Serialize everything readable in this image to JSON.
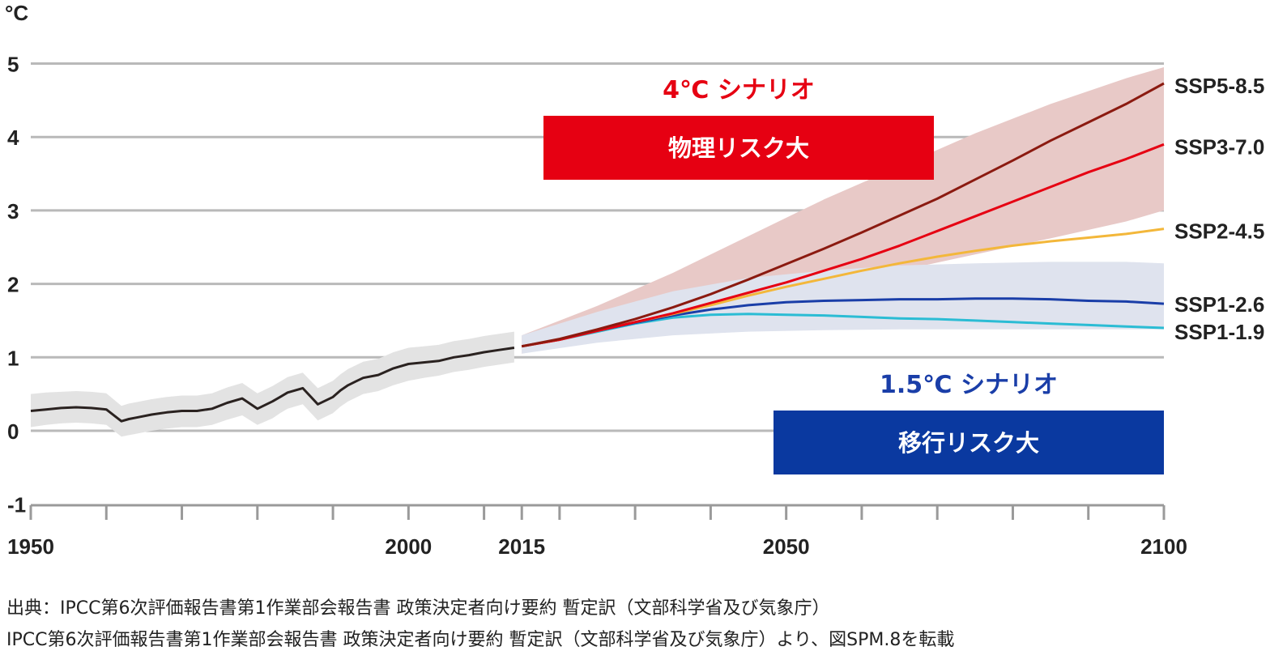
{
  "chart_data": {
    "type": "line",
    "unit_label": "°C",
    "x_ticks": [
      1950,
      2000,
      2015,
      2050,
      2100
    ],
    "y_ticks": [
      -1,
      0,
      1,
      2,
      3,
      4,
      5
    ],
    "xlim": [
      1950,
      2100
    ],
    "ylim": [
      -1,
      5
    ],
    "grid": "horizontal",
    "historical": {
      "x": [
        1950,
        1952,
        1954,
        1956,
        1958,
        1960,
        1962,
        1963,
        1964,
        1966,
        1968,
        1970,
        1972,
        1974,
        1976,
        1978,
        1980,
        1982,
        1983,
        1984,
        1986,
        1988,
        1990,
        1991,
        1992,
        1993,
        1994,
        1996,
        1998,
        2000,
        2002,
        2004,
        2006,
        2008,
        2010,
        2012,
        2014
      ],
      "values": [
        0.27,
        0.29,
        0.31,
        0.32,
        0.31,
        0.29,
        0.13,
        0.16,
        0.18,
        0.22,
        0.25,
        0.27,
        0.27,
        0.3,
        0.38,
        0.44,
        0.3,
        0.4,
        0.46,
        0.52,
        0.58,
        0.36,
        0.46,
        0.55,
        0.62,
        0.67,
        0.72,
        0.76,
        0.85,
        0.91,
        0.93,
        0.95,
        1.0,
        1.03,
        1.07,
        1.1,
        1.13
      ],
      "range_low": [
        0.05,
        0.08,
        0.1,
        0.11,
        0.1,
        0.08,
        -0.08,
        -0.06,
        -0.04,
        0.0,
        0.03,
        0.05,
        0.05,
        0.08,
        0.15,
        0.21,
        0.08,
        0.17,
        0.24,
        0.3,
        0.36,
        0.14,
        0.24,
        0.33,
        0.4,
        0.45,
        0.5,
        0.54,
        0.62,
        0.68,
        0.72,
        0.75,
        0.8,
        0.83,
        0.87,
        0.9,
        0.93
      ],
      "range_high": [
        0.5,
        0.52,
        0.53,
        0.54,
        0.53,
        0.51,
        0.34,
        0.37,
        0.39,
        0.43,
        0.46,
        0.48,
        0.48,
        0.51,
        0.59,
        0.65,
        0.51,
        0.61,
        0.67,
        0.73,
        0.79,
        0.58,
        0.68,
        0.77,
        0.84,
        0.89,
        0.94,
        0.98,
        1.07,
        1.13,
        1.15,
        1.17,
        1.22,
        1.25,
        1.29,
        1.32,
        1.35
      ]
    },
    "projection_x": [
      2015,
      2020,
      2025,
      2030,
      2035,
      2040,
      2045,
      2050,
      2055,
      2060,
      2065,
      2070,
      2075,
      2080,
      2085,
      2090,
      2095,
      2100
    ],
    "series": [
      {
        "name": "SSP5-8.5",
        "color": "#8b1a10",
        "values": [
          1.15,
          1.25,
          1.38,
          1.52,
          1.68,
          1.86,
          2.06,
          2.27,
          2.48,
          2.7,
          2.93,
          3.16,
          3.42,
          3.68,
          3.95,
          4.2,
          4.45,
          4.73
        ]
      },
      {
        "name": "SSP3-7.0",
        "color": "#e60012",
        "values": [
          1.15,
          1.24,
          1.36,
          1.48,
          1.6,
          1.74,
          1.88,
          2.02,
          2.18,
          2.34,
          2.52,
          2.72,
          2.92,
          3.12,
          3.32,
          3.52,
          3.7,
          3.9
        ]
      },
      {
        "name": "SSP2-4.5",
        "color": "#f3b73a",
        "values": [
          1.15,
          1.24,
          1.36,
          1.48,
          1.59,
          1.71,
          1.84,
          1.96,
          2.07,
          2.18,
          2.28,
          2.37,
          2.45,
          2.52,
          2.58,
          2.63,
          2.68,
          2.75
        ]
      },
      {
        "name": "SSP1-2.6",
        "color": "#1a3ea8",
        "values": [
          1.15,
          1.24,
          1.36,
          1.47,
          1.57,
          1.65,
          1.71,
          1.75,
          1.77,
          1.78,
          1.79,
          1.79,
          1.8,
          1.8,
          1.79,
          1.77,
          1.76,
          1.73
        ]
      },
      {
        "name": "SSP1-1.9",
        "color": "#2bbcd4",
        "values": [
          1.15,
          1.24,
          1.35,
          1.46,
          1.54,
          1.58,
          1.59,
          1.58,
          1.57,
          1.55,
          1.53,
          1.52,
          1.5,
          1.48,
          1.46,
          1.44,
          1.42,
          1.4
        ]
      }
    ],
    "band_high": {
      "x": [
        2015,
        2025,
        2035,
        2045,
        2055,
        2065,
        2075,
        2085,
        2095,
        2100
      ],
      "values": [
        1.3,
        1.7,
        2.15,
        2.65,
        3.15,
        3.6,
        4.05,
        4.45,
        4.8,
        4.95
      ]
    },
    "band_low_upper": {
      "x": [
        2015,
        2025,
        2035,
        2045,
        2055,
        2065,
        2075,
        2085,
        2095,
        2100
      ],
      "values": [
        1.05,
        1.25,
        1.5,
        1.75,
        1.98,
        2.18,
        2.4,
        2.62,
        2.85,
        3.0
      ]
    },
    "band_low": {
      "x": [
        2015,
        2025,
        2035,
        2045,
        2055,
        2065,
        2075,
        2085,
        2095,
        2100
      ],
      "values": [
        1.3,
        1.62,
        1.9,
        2.08,
        2.18,
        2.25,
        2.28,
        2.3,
        2.3,
        2.28
      ]
    },
    "band_low_lower": {
      "x": [
        2015,
        2025,
        2035,
        2045,
        2055,
        2065,
        2075,
        2085,
        2095,
        2100
      ],
      "values": [
        1.05,
        1.2,
        1.3,
        1.35,
        1.37,
        1.38,
        1.38,
        1.38,
        1.38,
        1.38
      ]
    },
    "annotations": {
      "high_title": "4℃ シナリオ",
      "high_box": "物理リスク大",
      "low_title": "1.5℃ シナリオ",
      "low_box": "移行リスク大"
    }
  },
  "colors": {
    "high_box": "#e60012",
    "low_box": "#0a39a0",
    "high_title": "#e60012",
    "low_title": "#1a3ea8",
    "high_band": "#e8c9c7",
    "low_band": "#dfe3ee",
    "hist_band": "#e3e3e3",
    "hist_line": "#2a2220"
  },
  "captions": {
    "line1": "出典：IPCC第6次評価報告書第1作業部会報告書 政策決定者向け要約 暫定訳（文部科学省及び気象庁）",
    "line2": "IPCC第6次評価報告書第1作業部会報告書 政策決定者向け要約 暫定訳（文部科学省及び気象庁）より、図SPM.8を転載"
  }
}
